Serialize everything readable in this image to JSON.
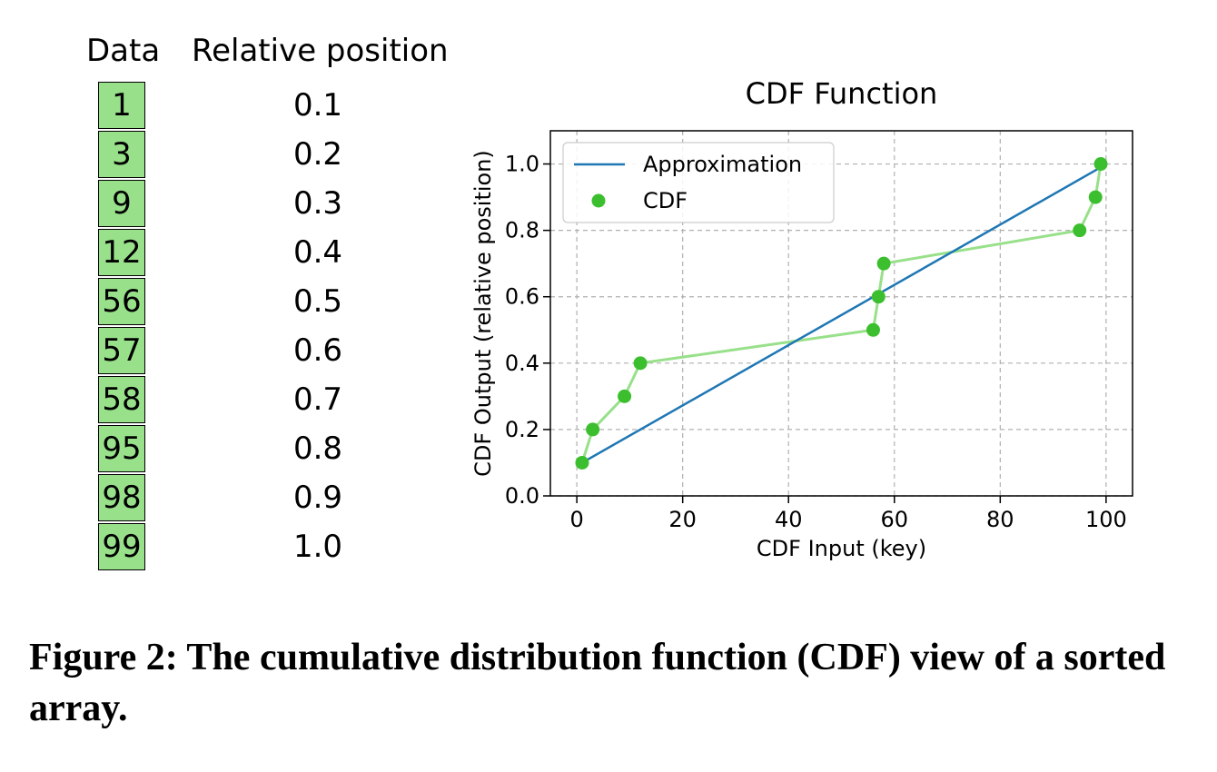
{
  "table": {
    "data_header": "Data",
    "position_header": "Relative position",
    "cell_color": "#98e08a",
    "rows": [
      {
        "key": "1",
        "pos": "0.1"
      },
      {
        "key": "3",
        "pos": "0.2"
      },
      {
        "key": "9",
        "pos": "0.3"
      },
      {
        "key": "12",
        "pos": "0.4"
      },
      {
        "key": "56",
        "pos": "0.5"
      },
      {
        "key": "57",
        "pos": "0.6"
      },
      {
        "key": "58",
        "pos": "0.7"
      },
      {
        "key": "95",
        "pos": "0.8"
      },
      {
        "key": "98",
        "pos": "0.9"
      },
      {
        "key": "99",
        "pos": "1.0"
      }
    ]
  },
  "chart_data": {
    "type": "line",
    "title": "CDF Function",
    "xlabel": "CDF Input (key)",
    "ylabel": "CDF Output (relative position)",
    "xlim": [
      -5,
      105
    ],
    "ylim": [
      0,
      1.1
    ],
    "xticks": [
      "0",
      "20",
      "40",
      "60",
      "80",
      "100"
    ],
    "yticks": [
      "0.0",
      "0.2",
      "0.4",
      "0.6",
      "0.8",
      "1.0"
    ],
    "grid": true,
    "legend_position": "top-left",
    "series": [
      {
        "name": "Approximation",
        "style": "line",
        "color": "#1f77b4",
        "x": [
          1,
          99
        ],
        "y": [
          0.1,
          0.99
        ]
      },
      {
        "name": "CDF",
        "style": "markers",
        "color": "#3cbf2e",
        "line_color": "#98e08a",
        "x": [
          1,
          3,
          9,
          12,
          56,
          57,
          58,
          95,
          98,
          99
        ],
        "y": [
          0.1,
          0.2,
          0.3,
          0.4,
          0.5,
          0.6,
          0.7,
          0.8,
          0.9,
          1.0
        ]
      }
    ]
  },
  "caption": "Figure 2: The cumulative distribution function (CDF) view of a sorted array."
}
